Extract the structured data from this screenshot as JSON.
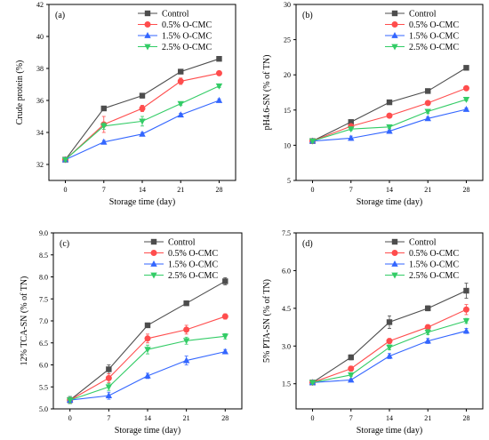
{
  "chart_data": [
    {
      "type": "line",
      "panel_label": "(a)",
      "xlabel": "Storage time (day)",
      "ylabel": "Crude protein (%)",
      "x": [
        0,
        7,
        14,
        21,
        28
      ],
      "xlim": [
        -3,
        31
      ],
      "ylim": [
        31,
        42
      ],
      "yticks": [
        "32",
        "34",
        "36",
        "38",
        "40",
        "42"
      ],
      "ytick_values": [
        32,
        34,
        36,
        38,
        40,
        42
      ],
      "legend_position": "top-right",
      "series": [
        {
          "name": "Control",
          "color": "#4d4d4d",
          "marker": "square",
          "values": [
            32.3,
            35.5,
            36.3,
            37.8,
            38.6
          ],
          "errors": [
            0.1,
            0.1,
            0.15,
            0.1,
            0.1
          ]
        },
        {
          "name": "0.5% O-CMC",
          "color": "#ff4d4d",
          "marker": "circle",
          "values": [
            32.3,
            34.5,
            35.5,
            37.2,
            37.7
          ],
          "errors": [
            0.1,
            0.5,
            0.2,
            0.2,
            0.1
          ]
        },
        {
          "name": "1.5% O-CMC",
          "color": "#3366ff",
          "marker": "triangle-up",
          "values": [
            32.3,
            33.4,
            33.9,
            35.1,
            36.0
          ],
          "errors": [
            0.1,
            0.1,
            0.1,
            0.1,
            0.1
          ]
        },
        {
          "name": "2.5% O-CMC",
          "color": "#33cc66",
          "marker": "triangle-down",
          "values": [
            32.3,
            34.4,
            34.7,
            35.8,
            36.9
          ],
          "errors": [
            0.1,
            0.2,
            0.3,
            0.1,
            0.1
          ]
        }
      ]
    },
    {
      "type": "line",
      "panel_label": "(b)",
      "xlabel": "Storage time (day)",
      "ylabel": "pH4.6-SN (% of TN)",
      "x": [
        0,
        7,
        14,
        21,
        28
      ],
      "xlim": [
        -3,
        31
      ],
      "ylim": [
        5,
        30
      ],
      "yticks": [
        "5",
        "10",
        "15",
        "20",
        "25",
        "30"
      ],
      "ytick_values": [
        5,
        10,
        15,
        20,
        25,
        30
      ],
      "legend_position": "top-right",
      "series": [
        {
          "name": "Control",
          "color": "#4d4d4d",
          "marker": "square",
          "values": [
            10.6,
            13.3,
            16.1,
            17.7,
            21.0
          ],
          "errors": [
            0.2,
            0.3,
            0.3,
            0.2,
            0.2
          ]
        },
        {
          "name": "0.5% O-CMC",
          "color": "#ff4d4d",
          "marker": "circle",
          "values": [
            10.6,
            12.7,
            14.2,
            16.0,
            18.1
          ],
          "errors": [
            0.2,
            0.2,
            0.2,
            0.2,
            0.3
          ]
        },
        {
          "name": "1.5% O-CMC",
          "color": "#3366ff",
          "marker": "triangle-up",
          "values": [
            10.6,
            11.0,
            12.0,
            13.8,
            15.1
          ],
          "errors": [
            0.2,
            0.3,
            0.2,
            0.2,
            0.2
          ]
        },
        {
          "name": "2.5% O-CMC",
          "color": "#33cc66",
          "marker": "triangle-down",
          "values": [
            10.6,
            12.3,
            12.6,
            14.8,
            16.5
          ],
          "errors": [
            0.2,
            0.2,
            0.2,
            0.3,
            0.2
          ]
        }
      ]
    },
    {
      "type": "line",
      "panel_label": "(c)",
      "xlabel": "Storage time (day)",
      "ylabel": "12% TCA-SN (% of TN)",
      "x": [
        0,
        7,
        14,
        21,
        28
      ],
      "xlim": [
        -3,
        31
      ],
      "ylim": [
        5.0,
        9.0
      ],
      "yticks": [
        "5.0",
        "5.5",
        "6.0",
        "6.5",
        "7.0",
        "7.5",
        "8.0",
        "8.5",
        "9.0"
      ],
      "ytick_values": [
        5.0,
        5.5,
        6.0,
        6.5,
        7.0,
        7.5,
        8.0,
        8.5,
        9.0
      ],
      "legend_position": "top-right",
      "series": [
        {
          "name": "Control",
          "color": "#4d4d4d",
          "marker": "square",
          "values": [
            5.2,
            5.9,
            6.9,
            7.4,
            7.9
          ],
          "errors": [
            0.08,
            0.1,
            0.04,
            0.04,
            0.08
          ]
        },
        {
          "name": "0.5% O-CMC",
          "color": "#ff4d4d",
          "marker": "circle",
          "values": [
            5.2,
            5.7,
            6.6,
            6.8,
            7.1
          ],
          "errors": [
            0.08,
            0.1,
            0.1,
            0.1,
            0.06
          ]
        },
        {
          "name": "1.5% O-CMC",
          "color": "#3366ff",
          "marker": "triangle-up",
          "values": [
            5.2,
            5.3,
            5.75,
            6.1,
            6.3
          ],
          "errors": [
            0.08,
            0.08,
            0.06,
            0.1,
            0.05
          ]
        },
        {
          "name": "2.5% O-CMC",
          "color": "#33cc66",
          "marker": "triangle-down",
          "values": [
            5.2,
            5.5,
            6.35,
            6.55,
            6.65
          ],
          "errors": [
            0.08,
            0.08,
            0.1,
            0.08,
            0.06
          ]
        }
      ]
    },
    {
      "type": "line",
      "panel_label": "(d)",
      "xlabel": "Storage time (day)",
      "ylabel": "5% PTA-SN (% of TN)",
      "x": [
        0,
        7,
        14,
        21,
        28
      ],
      "xlim": [
        -3,
        31
      ],
      "ylim": [
        0.5,
        7.5
      ],
      "yticks": [
        "1.5",
        "3.0",
        "4.5",
        "6.0",
        "7.5"
      ],
      "ytick_values": [
        1.5,
        3.0,
        4.5,
        6.0,
        7.5
      ],
      "legend_position": "top-right",
      "series": [
        {
          "name": "Control",
          "color": "#4d4d4d",
          "marker": "square",
          "values": [
            1.55,
            2.55,
            3.95,
            4.5,
            5.2
          ],
          "errors": [
            0.05,
            0.1,
            0.25,
            0.1,
            0.3
          ]
        },
        {
          "name": "0.5% O-CMC",
          "color": "#ff4d4d",
          "marker": "circle",
          "values": [
            1.55,
            2.1,
            3.2,
            3.75,
            4.45
          ],
          "errors": [
            0.05,
            0.1,
            0.1,
            0.1,
            0.2
          ]
        },
        {
          "name": "1.5% O-CMC",
          "color": "#3366ff",
          "marker": "triangle-up",
          "values": [
            1.55,
            1.65,
            2.6,
            3.2,
            3.6
          ],
          "errors": [
            0.05,
            0.05,
            0.1,
            0.1,
            0.1
          ]
        },
        {
          "name": "2.5% O-CMC",
          "color": "#33cc66",
          "marker": "triangle-down",
          "values": [
            1.55,
            1.85,
            2.95,
            3.55,
            4.0
          ],
          "errors": [
            0.05,
            0.05,
            0.1,
            0.1,
            0.1
          ]
        }
      ]
    }
  ]
}
